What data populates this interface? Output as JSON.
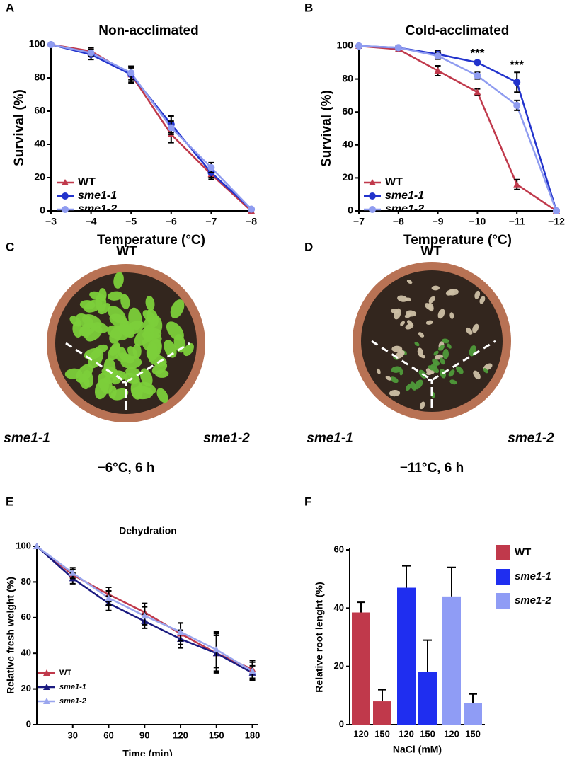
{
  "chart_data": [
    {
      "panel": "A",
      "type": "line",
      "title": "Non-acclimated",
      "x_label": "Temperature (°C)",
      "y_label": "Survival (%)",
      "categories": [
        "−3",
        "−4",
        "−5",
        "−6",
        "−7",
        "−8"
      ],
      "ylim": [
        0,
        100
      ],
      "yticks": [
        0,
        20,
        40,
        60,
        80,
        100
      ],
      "series": [
        {
          "name": "WT",
          "color": "#c0394b",
          "marker": "triangle",
          "values": [
            100,
            96,
            82,
            46,
            22,
            0
          ],
          "errors": [
            0,
            2,
            4,
            5,
            3,
            0
          ]
        },
        {
          "name": "sme1-1",
          "color": "#2233cc",
          "marker": "circle",
          "values": [
            100,
            94,
            82,
            52,
            23,
            1
          ],
          "errors": [
            0,
            3,
            5,
            5,
            3,
            0
          ]
        },
        {
          "name": "sme1-2",
          "color": "#8f9cf0",
          "marker": "circle",
          "values": [
            100,
            95,
            83,
            50,
            26,
            1
          ],
          "errors": [
            0,
            2,
            4,
            4,
            3,
            0
          ]
        }
      ]
    },
    {
      "panel": "B",
      "type": "line",
      "title": "Cold-acclimated",
      "x_label": "Temperature (°C)",
      "y_label": "Survival (%)",
      "categories": [
        "−7",
        "−8",
        "−9",
        "−10",
        "−11",
        "−12"
      ],
      "ylim": [
        0,
        100
      ],
      "yticks": [
        0,
        20,
        40,
        60,
        80,
        100
      ],
      "annotations": [
        {
          "text": "***",
          "at": "−10"
        },
        {
          "text": "***",
          "at": "−11"
        }
      ],
      "series": [
        {
          "name": "WT",
          "color": "#c0394b",
          "marker": "triangle",
          "values": [
            100,
            98,
            85,
            72,
            16,
            0
          ],
          "errors": [
            0,
            1,
            3,
            2,
            3,
            0
          ]
        },
        {
          "name": "sme1-1",
          "color": "#2233cc",
          "marker": "circle",
          "values": [
            100,
            99,
            95,
            90,
            78,
            0
          ],
          "errors": [
            0,
            1,
            2,
            1,
            6,
            0
          ]
        },
        {
          "name": "sme1-2",
          "color": "#8f9cf0",
          "marker": "circle",
          "values": [
            100,
            99,
            94,
            82,
            64,
            0
          ],
          "errors": [
            0,
            1,
            2,
            2,
            3,
            0
          ]
        }
      ]
    },
    {
      "panel": "E",
      "type": "line",
      "title": "Dehydration",
      "x_label": "Time (min)",
      "y_label": "Relative fresh weight (%)",
      "x": [
        0,
        30,
        60,
        90,
        120,
        150,
        180
      ],
      "xlim": [
        0,
        185
      ],
      "xticks": [
        30,
        60,
        90,
        120,
        150,
        180
      ],
      "ylim": [
        0,
        100
      ],
      "yticks": [
        0,
        20,
        40,
        60,
        80,
        100
      ],
      "series": [
        {
          "name": "WT",
          "color": "#c0394b",
          "marker": "triangle",
          "values": [
            100,
            84,
            73,
            63,
            51,
            40,
            31
          ],
          "errors": [
            0,
            3,
            4,
            5,
            6,
            10,
            5
          ]
        },
        {
          "name": "sme1-1",
          "color": "#1a1a80",
          "marker": "triangle",
          "values": [
            100,
            82,
            68,
            58,
            48,
            40,
            29
          ],
          "errors": [
            0,
            3,
            4,
            4,
            5,
            11,
            4
          ]
        },
        {
          "name": "sme1-2",
          "color": "#9aa6ee",
          "marker": "triangle",
          "values": [
            100,
            85,
            71,
            61,
            52,
            42,
            30
          ],
          "errors": [
            0,
            3,
            4,
            5,
            5,
            10,
            5
          ]
        }
      ]
    },
    {
      "panel": "F",
      "type": "bar",
      "x_label": "NaCl (mM)",
      "y_label": "Relative root lenght (%)",
      "categories": [
        "120",
        "150"
      ],
      "ylim": [
        0,
        60
      ],
      "yticks": [
        0,
        20,
        40,
        60
      ],
      "series": [
        {
          "name": "WT",
          "color": "#c0394b",
          "values": [
            38.5,
            8
          ],
          "errors": [
            3.5,
            4
          ]
        },
        {
          "name": "sme1-1",
          "color": "#1f2ef0",
          "values": [
            47,
            18
          ],
          "errors": [
            7.5,
            11
          ]
        },
        {
          "name": "sme1-2",
          "color": "#8f9cf5",
          "values": [
            44,
            7.5
          ],
          "errors": [
            10,
            3
          ]
        }
      ]
    }
  ],
  "photos": [
    {
      "panel": "C",
      "top": "WT",
      "left": "sme1-1",
      "right": "sme1-2",
      "caption": "−6°C, 6 h"
    },
    {
      "panel": "D",
      "top": "WT",
      "left": "sme1-1",
      "right": "sme1-2",
      "caption": "−11°C, 6 h"
    }
  ]
}
